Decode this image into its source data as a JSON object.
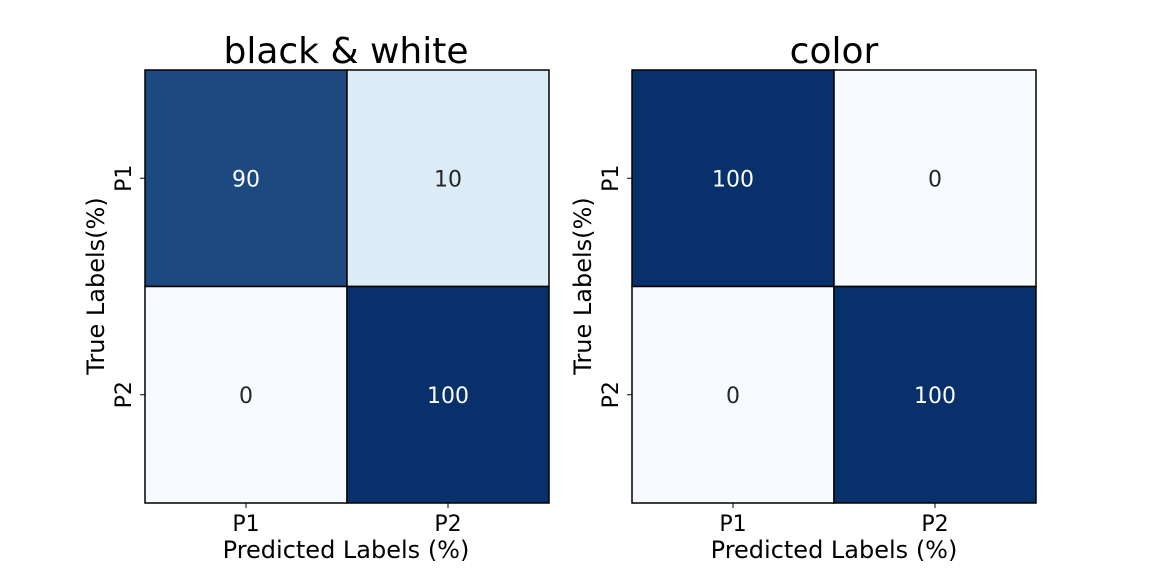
{
  "chart_data": [
    {
      "type": "heatmap",
      "title": "black & white",
      "xlabel": "Predicted Labels (%)",
      "ylabel": "True Labels(%)",
      "x_categories": [
        "P1",
        "P2"
      ],
      "y_categories": [
        "P1",
        "P2"
      ],
      "values": [
        [
          90,
          10
        ],
        [
          0,
          100
        ]
      ],
      "value_range": [
        0,
        100
      ],
      "colormap": "Blues",
      "grid": false,
      "legend": "none"
    },
    {
      "type": "heatmap",
      "title": "color",
      "xlabel": "Predicted Labels (%)",
      "ylabel": "True Labels(%)",
      "x_categories": [
        "P1",
        "P2"
      ],
      "y_categories": [
        "P1",
        "P2"
      ],
      "values": [
        [
          100,
          0
        ],
        [
          0,
          100
        ]
      ],
      "value_range": [
        0,
        100
      ],
      "colormap": "Blues",
      "grid": false,
      "legend": "none"
    }
  ],
  "colors": {
    "low": "#f7fbff",
    "mid": "#6baed6",
    "high": "#08306b",
    "border": "#000000"
  }
}
